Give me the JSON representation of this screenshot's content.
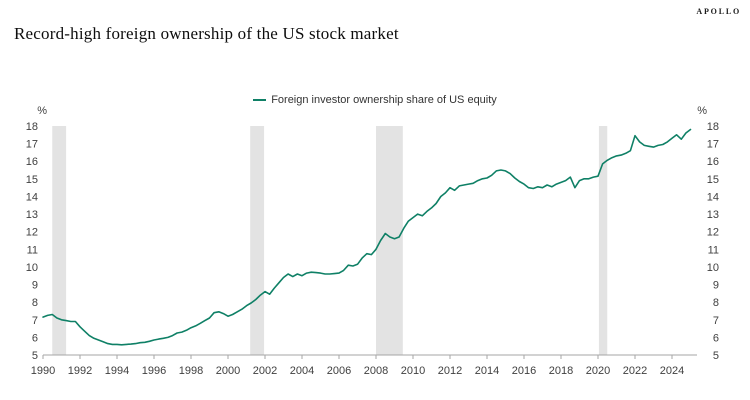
{
  "header": {
    "brand": "APOLLO",
    "title": "Record-high foreign ownership of the US stock market"
  },
  "chart_data": {
    "type": "line",
    "title": "Record-high foreign ownership of the US stock market",
    "legend": [
      "Foreign investor ownership share of US equity"
    ],
    "legend_position": "top-center",
    "grid": false,
    "y_unit": "%",
    "xlabel": "",
    "ylabel": "%",
    "xlim": [
      1990,
      2025.4
    ],
    "ylim": [
      5,
      18
    ],
    "xticks": [
      1990,
      1992,
      1994,
      1996,
      1998,
      2000,
      2002,
      2004,
      2006,
      2008,
      2010,
      2012,
      2014,
      2016,
      2018,
      2020,
      2022,
      2024
    ],
    "yticks": [
      5,
      6,
      7,
      8,
      9,
      10,
      11,
      12,
      13,
      14,
      15,
      16,
      17,
      18
    ],
    "line_color": "#0f8066",
    "axis_color": "#a6a6a6",
    "tick_label_color": "#404040",
    "recession_band_color": "#e3e3e3",
    "recession_bands": [
      [
        1990.5,
        1991.25
      ],
      [
        2001.2,
        2001.95
      ],
      [
        2008.0,
        2009.45
      ],
      [
        2020.05,
        2020.5
      ]
    ],
    "series": [
      {
        "name": "Foreign investor ownership share of US equity",
        "x": [
          1990,
          1990.25,
          1990.5,
          1990.75,
          1991,
          1991.25,
          1991.5,
          1991.75,
          1992,
          1992.25,
          1992.5,
          1992.75,
          1993,
          1993.25,
          1993.5,
          1993.75,
          1994,
          1994.25,
          1994.5,
          1994.75,
          1995,
          1995.25,
          1995.5,
          1995.75,
          1996,
          1996.25,
          1996.5,
          1996.75,
          1997,
          1997.25,
          1997.5,
          1997.75,
          1998,
          1998.25,
          1998.5,
          1998.75,
          1999,
          1999.25,
          1999.5,
          1999.75,
          2000,
          2000.25,
          2000.5,
          2000.75,
          2001,
          2001.25,
          2001.5,
          2001.75,
          2002,
          2002.25,
          2002.5,
          2002.75,
          2003,
          2003.25,
          2003.5,
          2003.75,
          2004,
          2004.25,
          2004.5,
          2004.75,
          2005,
          2005.25,
          2005.5,
          2005.75,
          2006,
          2006.25,
          2006.5,
          2006.75,
          2007,
          2007.25,
          2007.5,
          2007.75,
          2008,
          2008.25,
          2008.5,
          2008.75,
          2009,
          2009.25,
          2009.5,
          2009.75,
          2010,
          2010.25,
          2010.5,
          2010.75,
          2011,
          2011.25,
          2011.5,
          2011.75,
          2012,
          2012.25,
          2012.5,
          2012.75,
          2013,
          2013.25,
          2013.5,
          2013.75,
          2014,
          2014.25,
          2014.5,
          2014.75,
          2015,
          2015.25,
          2015.5,
          2015.75,
          2016,
          2016.25,
          2016.5,
          2016.75,
          2017,
          2017.25,
          2017.5,
          2017.75,
          2018,
          2018.25,
          2018.5,
          2018.75,
          2019,
          2019.25,
          2019.5,
          2019.75,
          2020,
          2020.25,
          2020.5,
          2020.75,
          2021,
          2021.25,
          2021.5,
          2021.75,
          2022,
          2022.25,
          2022.5,
          2022.75,
          2023,
          2023.25,
          2023.5,
          2023.75,
          2024,
          2024.25,
          2024.5,
          2024.75,
          2025
        ],
        "values": [
          7.15,
          7.25,
          7.3,
          7.1,
          7.0,
          6.95,
          6.9,
          6.9,
          6.6,
          6.35,
          6.1,
          5.95,
          5.85,
          5.75,
          5.65,
          5.6,
          5.6,
          5.58,
          5.6,
          5.62,
          5.65,
          5.7,
          5.72,
          5.78,
          5.85,
          5.9,
          5.95,
          6.0,
          6.1,
          6.25,
          6.3,
          6.4,
          6.55,
          6.65,
          6.8,
          6.95,
          7.1,
          7.4,
          7.45,
          7.35,
          7.2,
          7.3,
          7.45,
          7.6,
          7.8,
          7.95,
          8.15,
          8.4,
          8.6,
          8.45,
          8.8,
          9.1,
          9.4,
          9.6,
          9.45,
          9.6,
          9.5,
          9.65,
          9.7,
          9.68,
          9.65,
          9.6,
          9.6,
          9.62,
          9.65,
          9.8,
          10.1,
          10.05,
          10.15,
          10.5,
          10.75,
          10.7,
          11.0,
          11.5,
          11.9,
          11.7,
          11.6,
          11.7,
          12.2,
          12.6,
          12.8,
          13.0,
          12.9,
          13.15,
          13.35,
          13.6,
          14.0,
          14.2,
          14.5,
          14.35,
          14.6,
          14.65,
          14.7,
          14.75,
          14.9,
          15.0,
          15.05,
          15.2,
          15.45,
          15.5,
          15.45,
          15.3,
          15.05,
          14.85,
          14.7,
          14.5,
          14.45,
          14.55,
          14.5,
          14.65,
          14.55,
          14.7,
          14.8,
          14.9,
          15.1,
          14.5,
          14.9,
          15.0,
          15.0,
          15.1,
          15.15,
          15.85,
          16.05,
          16.2,
          16.3,
          16.35,
          16.45,
          16.6,
          17.45,
          17.1,
          16.9,
          16.85,
          16.8,
          16.9,
          16.95,
          17.1,
          17.3,
          17.5,
          17.25,
          17.6,
          17.8
        ]
      }
    ]
  }
}
